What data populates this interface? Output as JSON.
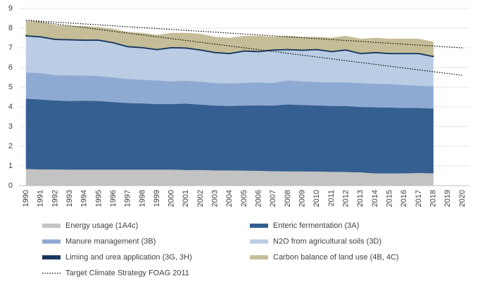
{
  "chart_data": {
    "type": "stacked_area",
    "categories": [
      "1990",
      "1991",
      "1992",
      "1993",
      "1994",
      "1995",
      "1996",
      "1997",
      "1998",
      "1999",
      "2000",
      "2001",
      "2002",
      "2003",
      "2004",
      "2005",
      "2006",
      "2007",
      "2008",
      "2009",
      "2010",
      "2011",
      "2012",
      "2013",
      "2014",
      "2015",
      "2016",
      "2017",
      "2018",
      "2019",
      "2020"
    ],
    "ylim": [
      0,
      9
    ],
    "yticks": [
      0,
      1,
      2,
      3,
      4,
      5,
      6,
      7,
      8,
      9
    ],
    "grid": true,
    "series": [
      {
        "name": "Energy usage (1A4c)",
        "color": "#c3c3c3",
        "values": [
          0.85,
          0.83,
          0.83,
          0.82,
          0.82,
          0.82,
          0.82,
          0.82,
          0.82,
          0.82,
          0.82,
          0.8,
          0.8,
          0.78,
          0.78,
          0.77,
          0.76,
          0.74,
          0.73,
          0.73,
          0.72,
          0.71,
          0.7,
          0.68,
          0.63,
          0.63,
          0.63,
          0.65,
          0.63,
          null,
          null
        ]
      },
      {
        "name": "Enteric fermentation (3A)",
        "color": "#355f91",
        "values": [
          3.57,
          3.55,
          3.5,
          3.48,
          3.5,
          3.48,
          3.43,
          3.38,
          3.36,
          3.33,
          3.33,
          3.37,
          3.32,
          3.29,
          3.27,
          3.3,
          3.32,
          3.33,
          3.4,
          3.37,
          3.36,
          3.34,
          3.35,
          3.32,
          3.35,
          3.34,
          3.32,
          3.3,
          3.29,
          null,
          null
        ]
      },
      {
        "name": "Manure management (3B)",
        "color": "#8faad2",
        "values": [
          1.33,
          1.34,
          1.29,
          1.3,
          1.28,
          1.27,
          1.25,
          1.22,
          1.2,
          1.2,
          1.15,
          1.16,
          1.16,
          1.15,
          1.15,
          1.16,
          1.17,
          1.15,
          1.22,
          1.2,
          1.19,
          1.2,
          1.2,
          1.22,
          1.2,
          1.2,
          1.17,
          1.13,
          1.13,
          null,
          null
        ]
      },
      {
        "name": "N2O from agricultural soils (3D)",
        "color": "#bacde5",
        "values": [
          1.85,
          1.83,
          1.8,
          1.8,
          1.78,
          1.81,
          1.75,
          1.63,
          1.62,
          1.55,
          1.7,
          1.65,
          1.6,
          1.53,
          1.5,
          1.6,
          1.55,
          1.66,
          1.55,
          1.57,
          1.63,
          1.55,
          1.63,
          1.48,
          1.57,
          1.53,
          1.58,
          1.62,
          1.5,
          null,
          null
        ]
      },
      {
        "name": "Liming and urea application (3G, 3H)",
        "color": "#17375e",
        "values": [
          0.05,
          0.05,
          0.05,
          0.05,
          0.05,
          0.05,
          0.05,
          0.05,
          0.05,
          0.05,
          0.05,
          0.05,
          0.05,
          0.05,
          0.05,
          0.05,
          0.05,
          0.05,
          0.05,
          0.05,
          0.05,
          0.05,
          0.05,
          0.05,
          0.05,
          0.05,
          0.05,
          0.05,
          0.05,
          null,
          null
        ]
      },
      {
        "name": "Carbon balance of land use (4B, 4C)",
        "color": "#c5bd97",
        "values": [
          0.7,
          0.7,
          0.68,
          0.65,
          0.67,
          0.62,
          0.65,
          0.7,
          0.7,
          0.7,
          0.7,
          0.72,
          0.77,
          0.75,
          0.75,
          0.72,
          0.75,
          0.62,
          0.65,
          0.63,
          0.6,
          0.65,
          0.67,
          0.7,
          0.7,
          0.7,
          0.7,
          0.7,
          0.7,
          null,
          null
        ]
      }
    ],
    "target_lines": [
      {
        "name": "Target Climate Strategy FOAG 2011",
        "color": "#000000",
        "x": [
          1990,
          2020
        ],
        "values": [
          8.4,
          7.0
        ]
      },
      {
        "color": "#000000",
        "x": [
          1990,
          2020
        ],
        "values": [
          8.4,
          5.6
        ]
      }
    ]
  }
}
